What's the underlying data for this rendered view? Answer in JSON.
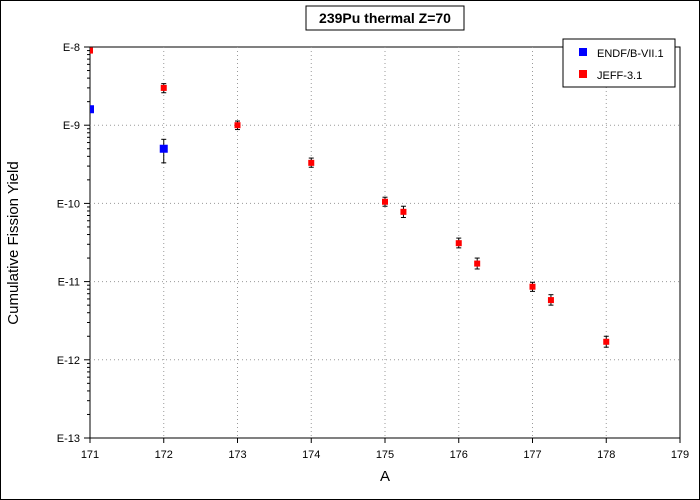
{
  "chart_data": {
    "type": "scatter",
    "title": "239Pu thermal Z=70",
    "xlabel": "A",
    "ylabel": "Cumulative Fission Yield",
    "xlim": [
      171,
      179
    ],
    "ylim": [
      1e-13,
      1e-08
    ],
    "yscale": "log",
    "x_ticks": [
      "171",
      "172",
      "173",
      "174",
      "175",
      "176",
      "177",
      "178",
      "179"
    ],
    "y_ticks": [
      "E-13",
      "E-12",
      "E-11",
      "E-10",
      "E-9",
      "E-8"
    ],
    "grid": true,
    "legend_position": "top-right",
    "series": [
      {
        "name": "ENDF/B-VII.1",
        "color": "#0000ff",
        "marker": "square",
        "points": [
          {
            "x": 171,
            "y": 1.6e-09
          },
          {
            "x": 172,
            "y": 5e-10,
            "err_low": 3.3e-10,
            "err_high": 6.6e-10
          }
        ]
      },
      {
        "name": "JEFF-3.1",
        "color": "#ff0000",
        "marker": "square",
        "points": [
          {
            "x": 171,
            "y": 9e-09
          },
          {
            "x": 172,
            "y": 3e-09,
            "err_low": 2.6e-09,
            "err_high": 3.4e-09
          },
          {
            "x": 173,
            "y": 1e-09,
            "err_low": 8.8e-10,
            "err_high": 1.13e-09
          },
          {
            "x": 174,
            "y": 3.3e-10,
            "err_low": 2.9e-10,
            "err_high": 3.8e-10
          },
          {
            "x": 175,
            "y": 1.05e-10,
            "err_low": 9.2e-11,
            "err_high": 1.2e-10
          },
          {
            "x": 175.25,
            "y": 7.8e-11,
            "err_low": 6.6e-11,
            "err_high": 9.2e-11
          },
          {
            "x": 176,
            "y": 3.1e-11,
            "err_low": 2.7e-11,
            "err_high": 3.6e-11
          },
          {
            "x": 176.25,
            "y": 1.7e-11,
            "err_low": 1.45e-11,
            "err_high": 2e-11
          },
          {
            "x": 177,
            "y": 8.6e-12,
            "err_low": 7.5e-12,
            "err_high": 9.8e-12
          },
          {
            "x": 177.25,
            "y": 5.8e-12,
            "err_low": 5e-12,
            "err_high": 6.8e-12
          },
          {
            "x": 178,
            "y": 1.7e-12,
            "err_low": 1.45e-12,
            "err_high": 2e-12
          }
        ]
      }
    ]
  }
}
